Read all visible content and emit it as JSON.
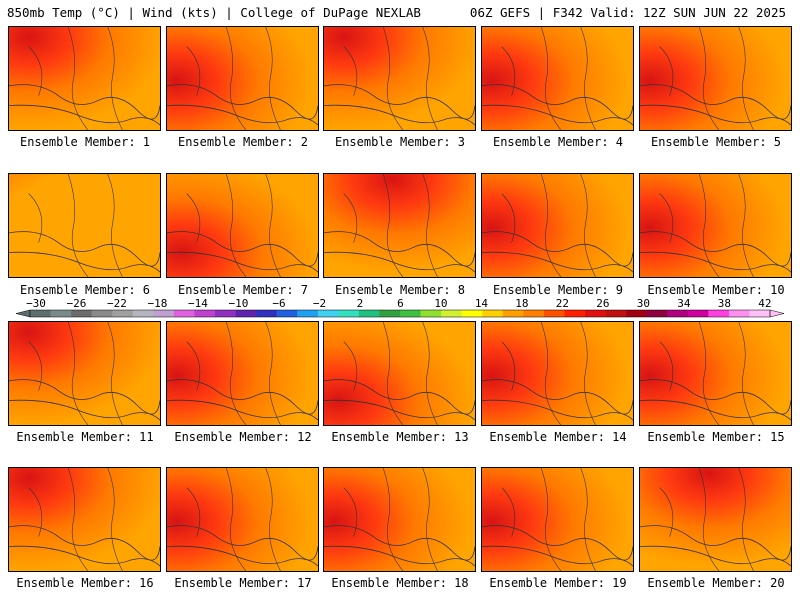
{
  "header": {
    "left_title": "850mb Temp (°C) | Wind (kts) | College of DuPage NEXLAB",
    "right_title": "06Z GEFS | F342 Valid: 12Z SUN JUN 22 2025"
  },
  "panels": [
    {
      "label": "Ensemble Member: 1",
      "hot": "NW"
    },
    {
      "label": "Ensemble Member: 2",
      "hot": "W"
    },
    {
      "label": "Ensemble Member: 3",
      "hot": "NW"
    },
    {
      "label": "Ensemble Member: 4",
      "hot": "W"
    },
    {
      "label": "Ensemble Member: 5",
      "hot": "W"
    },
    {
      "label": "Ensemble Member: 6",
      "hot": "none"
    },
    {
      "label": "Ensemble Member: 7",
      "hot": "SW"
    },
    {
      "label": "Ensemble Member: 8",
      "hot": "N"
    },
    {
      "label": "Ensemble Member: 9",
      "hot": "W"
    },
    {
      "label": "Ensemble Member: 10",
      "hot": "W"
    },
    {
      "label": "Ensemble Member: 11",
      "hot": "NW"
    },
    {
      "label": "Ensemble Member: 12",
      "hot": "W"
    },
    {
      "label": "Ensemble Member: 13",
      "hot": "SW"
    },
    {
      "label": "Ensemble Member: 14",
      "hot": "W"
    },
    {
      "label": "Ensemble Member: 15",
      "hot": "W"
    },
    {
      "label": "Ensemble Member: 16",
      "hot": "NW"
    },
    {
      "label": "Ensemble Member: 17",
      "hot": "W"
    },
    {
      "label": "Ensemble Member: 18",
      "hot": "W"
    },
    {
      "label": "Ensemble Member: 19",
      "hot": "W"
    },
    {
      "label": "Ensemble Member: 20",
      "hot": "N"
    }
  ],
  "colorbar": {
    "ticks": [
      "−30",
      "−26",
      "−22",
      "−18",
      "−14",
      "−10",
      "−6",
      "−2",
      "2",
      "6",
      "10",
      "14",
      "18",
      "22",
      "26",
      "30",
      "34",
      "38",
      "42"
    ],
    "colors": [
      "#5e6e6e",
      "#7a8a8a",
      "#6c6c6c",
      "#8a8a8a",
      "#a0a0a0",
      "#b5b5c0",
      "#c0a0d0",
      "#e060e0",
      "#c040d0",
      "#9030c0",
      "#6020b0",
      "#3030c0",
      "#2060e0",
      "#20a0f0",
      "#40d0f0",
      "#30e0c0",
      "#20c080",
      "#30a040",
      "#40c040",
      "#90e030",
      "#d0f030",
      "#ffff00",
      "#ffd000",
      "#ffa000",
      "#ff8000",
      "#ff5000",
      "#ff2000",
      "#e01010",
      "#c01010",
      "#a00010",
      "#900040",
      "#b00080",
      "#d000a0",
      "#ff40e0",
      "#ff90f0",
      "#ffc0f8"
    ]
  }
}
